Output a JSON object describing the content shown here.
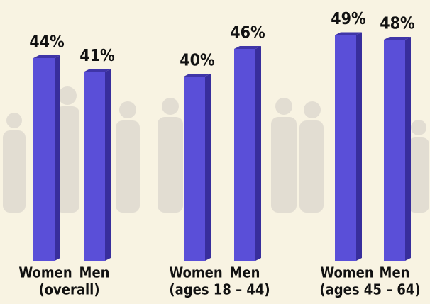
{
  "chart_data": {
    "type": "bar",
    "categories": [
      "Women",
      "Men",
      "Women",
      "Men",
      "Women",
      "Men"
    ],
    "groups": [
      "(overall)",
      "(ages 18 – 44)",
      "(ages 45 – 64)"
    ],
    "values": [
      44,
      41,
      40,
      46,
      49,
      48
    ],
    "value_labels": [
      "44%",
      "41%",
      "40%",
      "46%",
      "49%",
      "48%"
    ],
    "color": "#5a4fd8"
  }
}
